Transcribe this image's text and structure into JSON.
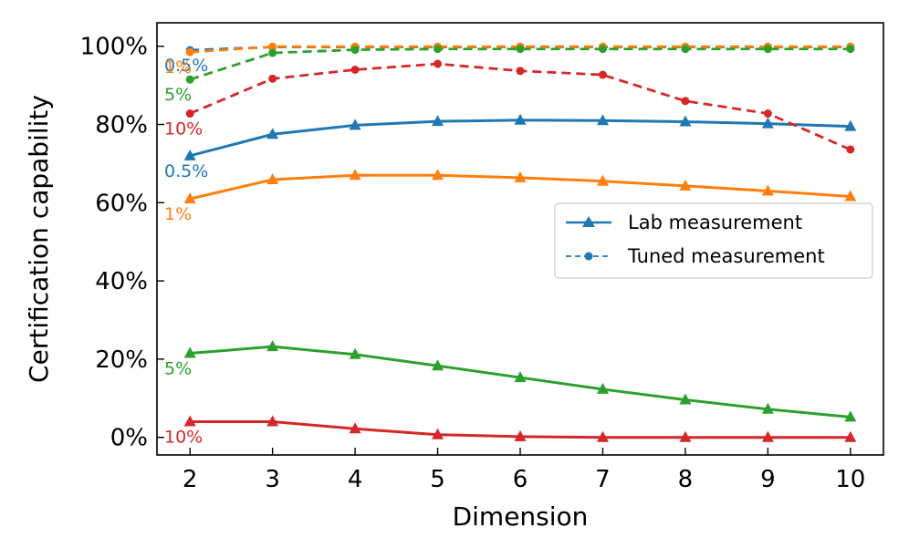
{
  "chart_data": {
    "type": "line",
    "xlabel": "Dimension",
    "ylabel": "Certification capability",
    "x": [
      2,
      3,
      4,
      5,
      6,
      7,
      8,
      9,
      10
    ],
    "xlim": [
      1.6,
      10.4
    ],
    "ylim": [
      -4.5,
      106
    ],
    "xticks": [
      2,
      3,
      4,
      5,
      6,
      7,
      8,
      9,
      10
    ],
    "xtick_labels": [
      "2",
      "3",
      "4",
      "5",
      "6",
      "7",
      "8",
      "9",
      "10"
    ],
    "yticks": [
      0,
      20,
      40,
      60,
      80,
      100
    ],
    "ytick_labels": [
      "0%",
      "20%",
      "40%",
      "60%",
      "80%",
      "100%"
    ],
    "grid": false,
    "legend": {
      "position": "center-right",
      "entries": [
        {
          "label": "Lab measurement",
          "style": "solid",
          "marker": "triangle",
          "color": "#1f77b4"
        },
        {
          "label": "Tuned measurement",
          "style": "dashed",
          "marker": "circle",
          "color": "#1f77b4"
        }
      ]
    },
    "series": [
      {
        "name": "0.5% Lab measurement",
        "group": "0.5%",
        "kind": "lab",
        "color": "#1f77b4",
        "values": [
          72.0,
          77.5,
          79.8,
          80.8,
          81.1,
          81.0,
          80.7,
          80.2,
          79.5
        ]
      },
      {
        "name": "1% Lab measurement",
        "group": "1%",
        "kind": "lab",
        "color": "#ff7f0e",
        "values": [
          61.0,
          65.9,
          67.0,
          67.0,
          66.4,
          65.5,
          64.3,
          63.0,
          61.6
        ]
      },
      {
        "name": "5% Lab measurement",
        "group": "5%",
        "kind": "lab",
        "color": "#2ca02c",
        "values": [
          21.5,
          23.2,
          21.2,
          18.3,
          15.3,
          12.3,
          9.6,
          7.2,
          5.2
        ]
      },
      {
        "name": "10% Lab measurement",
        "group": "10%",
        "kind": "lab",
        "color": "#d62728",
        "values": [
          4.0,
          4.0,
          2.2,
          0.7,
          0.2,
          0.0,
          0.0,
          0.0,
          0.0
        ]
      },
      {
        "name": "0.5% Tuned measurement",
        "group": "0.5%",
        "kind": "tuned",
        "color": "#1f77b4",
        "values": [
          99.0,
          99.8,
          99.8,
          99.8,
          99.8,
          99.8,
          99.8,
          99.8,
          99.8
        ]
      },
      {
        "name": "1% Tuned measurement",
        "group": "1%",
        "kind": "tuned",
        "color": "#ff7f0e",
        "values": [
          98.5,
          99.9,
          99.9,
          99.9,
          99.9,
          99.9,
          99.9,
          99.9,
          99.9
        ]
      },
      {
        "name": "5% Tuned measurement",
        "group": "5%",
        "kind": "tuned",
        "color": "#2ca02c",
        "values": [
          91.5,
          98.3,
          99.1,
          99.3,
          99.3,
          99.3,
          99.3,
          99.3,
          99.3
        ]
      },
      {
        "name": "10% Tuned measurement",
        "group": "10%",
        "kind": "tuned",
        "color": "#d62728",
        "values": [
          82.8,
          91.7,
          94.0,
          95.5,
          93.7,
          92.7,
          86.0,
          82.8,
          73.6
        ]
      }
    ],
    "annotations": [
      {
        "text": "0.5%",
        "series": "0.5% Tuned measurement",
        "color": "#1f77b4"
      },
      {
        "text": "1%",
        "series": "1% Tuned measurement",
        "color": "#ff7f0e"
      },
      {
        "text": "5%",
        "series": "5% Tuned measurement",
        "color": "#2ca02c"
      },
      {
        "text": "10%",
        "series": "10% Tuned measurement",
        "color": "#d62728"
      },
      {
        "text": "0.5%",
        "series": "0.5% Lab measurement",
        "color": "#1f77b4"
      },
      {
        "text": "1%",
        "series": "1% Lab measurement",
        "color": "#ff7f0e"
      },
      {
        "text": "5%",
        "series": "5% Lab measurement",
        "color": "#2ca02c"
      },
      {
        "text": "10%",
        "series": "10% Lab measurement",
        "color": "#d62728"
      }
    ]
  }
}
